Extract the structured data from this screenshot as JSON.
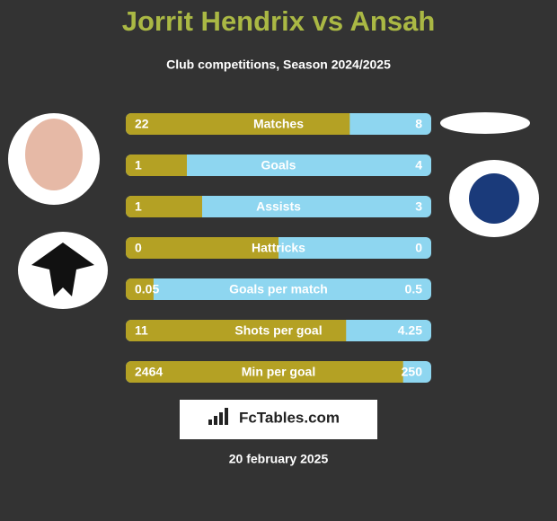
{
  "header": {
    "title": "Jorrit Hendrix vs Ansah",
    "subtitle": "Club competitions, Season 2024/2025"
  },
  "rows": [
    {
      "label": "Matches",
      "left": 22,
      "right": 8
    },
    {
      "label": "Goals",
      "left": 1,
      "right": 4
    },
    {
      "label": "Assists",
      "left": 1,
      "right": 3
    },
    {
      "label": "Hattricks",
      "left": 0,
      "right": 0
    },
    {
      "label": "Goals per match",
      "left": 0.05,
      "right": 0.5
    },
    {
      "label": "Shots per goal",
      "left": 11,
      "right": 4.25
    },
    {
      "label": "Min per goal",
      "left": 2464,
      "right": 250
    }
  ],
  "colors": {
    "left": "#b4a124",
    "right": "#8ed6f0"
  },
  "footer": {
    "brand": "FcTables.com",
    "date": "20 february 2025"
  }
}
